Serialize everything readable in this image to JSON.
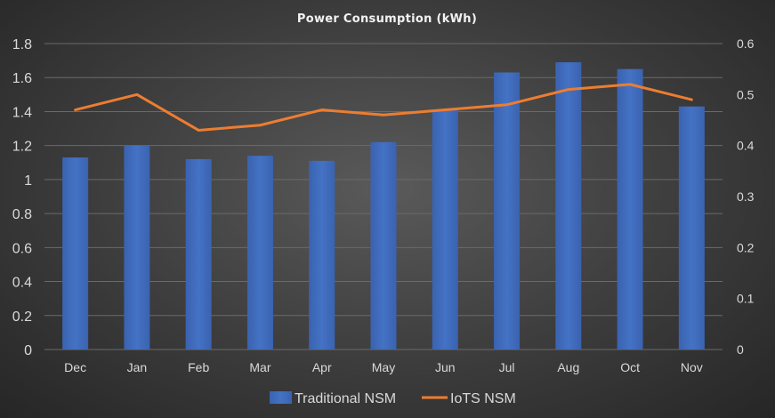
{
  "chart_data": {
    "type": "bar",
    "title": "Power Consumption (kWh)",
    "categories": [
      "Dec",
      "Jan",
      "Feb",
      "Mar",
      "Apr",
      "May",
      "Jun",
      "Jul",
      "Aug",
      "Oct",
      "Nov"
    ],
    "series": [
      {
        "name": "Traditional NSM",
        "type": "bar",
        "axis": "left",
        "color": "#4472c4",
        "values": [
          1.13,
          1.2,
          1.12,
          1.14,
          1.11,
          1.22,
          1.41,
          1.63,
          1.69,
          1.65,
          1.43
        ]
      },
      {
        "name": "IoTS NSM",
        "type": "line",
        "axis": "right",
        "color": "#ed7d31",
        "values": [
          0.47,
          0.5,
          0.43,
          0.44,
          0.47,
          0.46,
          0.47,
          0.48,
          0.51,
          0.52,
          0.49
        ]
      }
    ],
    "ylim": [
      0,
      1.8
    ],
    "yticks": [
      "0",
      "0.2",
      "0.4",
      "0.6",
      "0.8",
      "1",
      "1.2",
      "1.4",
      "1.6",
      "1.8"
    ],
    "y2lim": [
      0,
      0.6
    ],
    "y2ticks": [
      "0",
      "0.1",
      "0.2",
      "0.3",
      "0.4",
      "0.5",
      "0.6"
    ],
    "xlabel": "",
    "ylabel": "",
    "grid": true,
    "legend_position": "bottom"
  }
}
